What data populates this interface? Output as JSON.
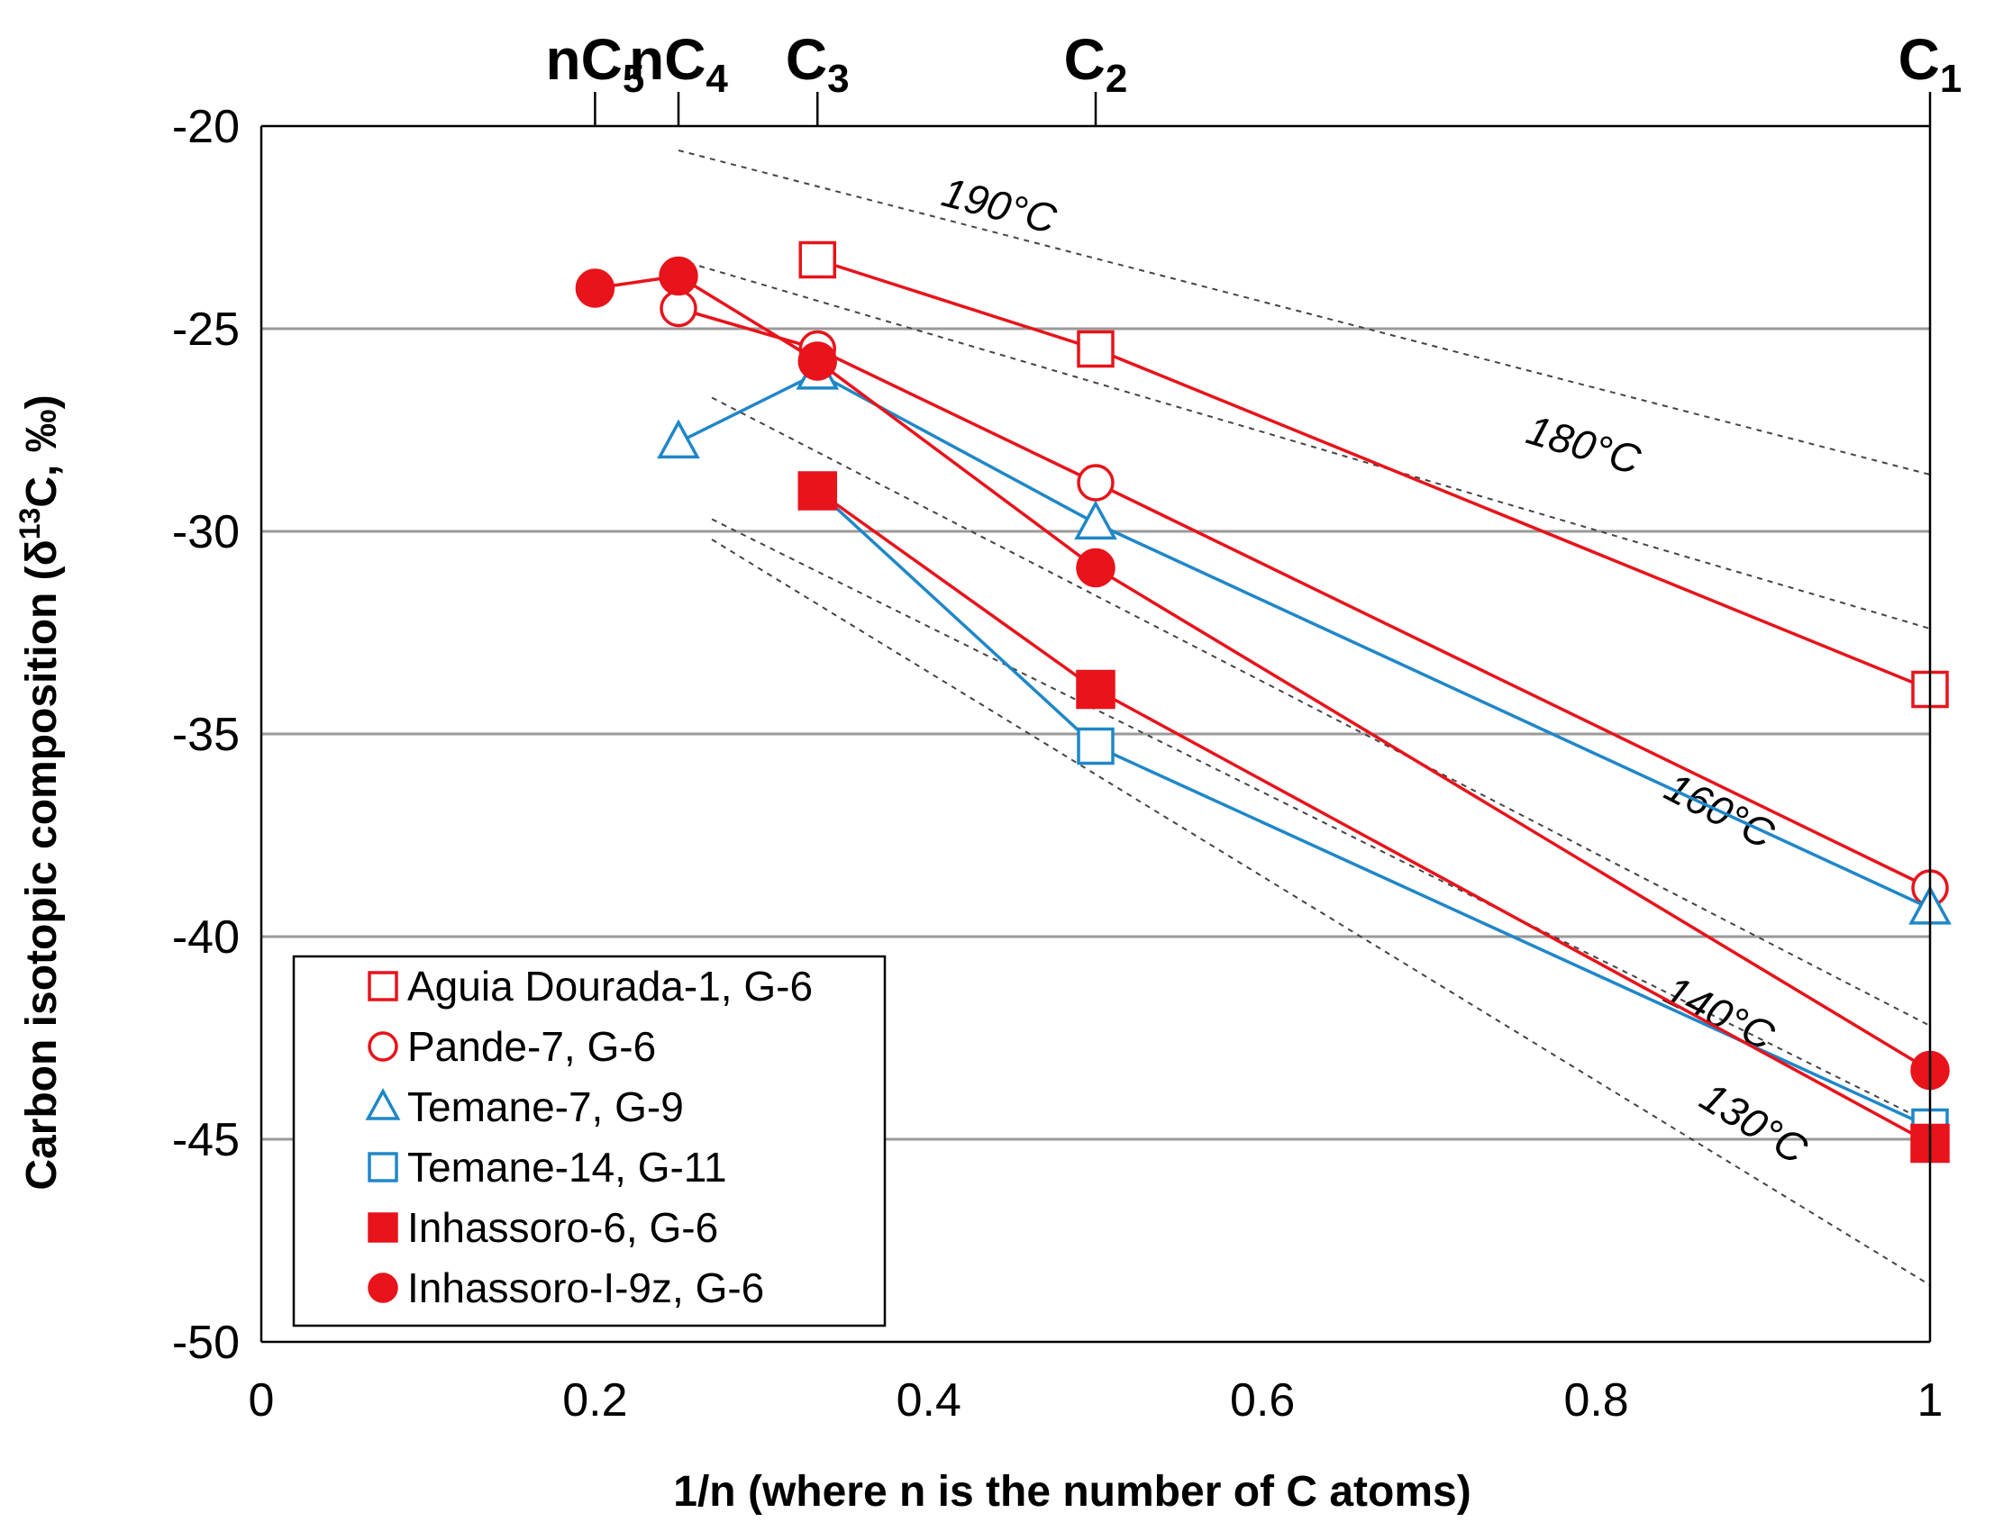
{
  "chart_data": {
    "type": "line",
    "xlabel": "1/n (where n is the number of C atoms)",
    "ylabel_parts": {
      "a": "Carbon isotopic composition (δ",
      "sup": "13",
      "b": "C, ‰)"
    },
    "xlim": [
      0,
      1
    ],
    "ylim": [
      -50,
      -20
    ],
    "x_ticks": [
      0,
      0.2,
      0.4,
      0.6,
      0.8,
      1
    ],
    "x_tick_labels": [
      "0",
      "0.2",
      "0.4",
      "0.6",
      "0.8",
      "1"
    ],
    "y_ticks": [
      -50,
      -45,
      -40,
      -35,
      -30,
      -25,
      -20
    ],
    "y_tick_labels": [
      "-50",
      "-45",
      "-40",
      "-35",
      "-30",
      "-25",
      "-20"
    ],
    "top_axis": [
      {
        "x": 0.2,
        "base": "nC",
        "sub": "5"
      },
      {
        "x": 0.25,
        "base": "nC",
        "sub": "4"
      },
      {
        "x": 0.3333,
        "base": "C",
        "sub": "3"
      },
      {
        "x": 0.5,
        "base": "C",
        "sub": "2"
      },
      {
        "x": 1.0,
        "base": "C",
        "sub": "1"
      }
    ],
    "isotherms": [
      {
        "label": "190°C",
        "x": [
          0.25,
          1.0
        ],
        "y": [
          -20.6,
          -28.6
        ],
        "label_at": [
          0.44,
          -22.3
        ]
      },
      {
        "label": "180°C",
        "x": [
          0.25,
          1.0
        ],
        "y": [
          -23.3,
          -32.4
        ],
        "label_at": [
          0.79,
          -28.2
        ]
      },
      {
        "label": "160°C",
        "x": [
          0.27,
          1.0
        ],
        "y": [
          -26.7,
          -42.2
        ],
        "label_at": [
          0.87,
          -37.2
        ]
      },
      {
        "label": "140°C",
        "x": [
          0.27,
          1.0
        ],
        "y": [
          -29.7,
          -44.6
        ],
        "label_at": [
          0.87,
          -42.2
        ]
      },
      {
        "label": "130°C",
        "x": [
          0.27,
          1.0
        ],
        "y": [
          -30.2,
          -48.6
        ],
        "label_at": [
          0.89,
          -44.9
        ]
      }
    ],
    "series": [
      {
        "name": "Aguia Dourada-1, G-6",
        "marker": "square",
        "filled": false,
        "color": "#e8131b",
        "x": [
          0.3333,
          0.5,
          1.0
        ],
        "y": [
          -23.3,
          -25.5,
          -33.9
        ]
      },
      {
        "name": "Pande-7, G-6",
        "marker": "circle",
        "filled": false,
        "color": "#e8131b",
        "x": [
          0.25,
          0.3333,
          0.5,
          1.0
        ],
        "y": [
          -24.5,
          -25.5,
          -28.8,
          -38.8
        ]
      },
      {
        "name": "Temane-7, G-9",
        "marker": "triangle",
        "filled": false,
        "color": "#1f87c8",
        "x": [
          0.25,
          0.3333,
          0.5,
          1.0
        ],
        "y": [
          -27.8,
          -26.1,
          -29.8,
          -39.3
        ]
      },
      {
        "name": "Temane-14, G-11",
        "marker": "square",
        "filled": false,
        "color": "#1f87c8",
        "x": [
          0.3333,
          0.5,
          1.0
        ],
        "y": [
          -29.0,
          -35.3,
          -44.7
        ]
      },
      {
        "name": "Inhassoro-6, G-6",
        "marker": "square",
        "filled": true,
        "color": "#e8131b",
        "x": [
          0.3333,
          0.5,
          1.0
        ],
        "y": [
          -29.0,
          -33.9,
          -45.1
        ]
      },
      {
        "name": "Inhassoro-I-9z, G-6",
        "marker": "circle",
        "filled": true,
        "color": "#e8131b",
        "x": [
          0.2,
          0.25,
          0.3333,
          0.5,
          1.0
        ],
        "y": [
          -24.0,
          -23.7,
          -25.8,
          -30.9,
          -43.3
        ]
      }
    ],
    "legend_position": "bottom-left",
    "grid": true
  },
  "colors": {
    "red": "#e8131b",
    "blue": "#1f87c8",
    "grid": "#9a9a9a",
    "isotherm": "#444444"
  }
}
